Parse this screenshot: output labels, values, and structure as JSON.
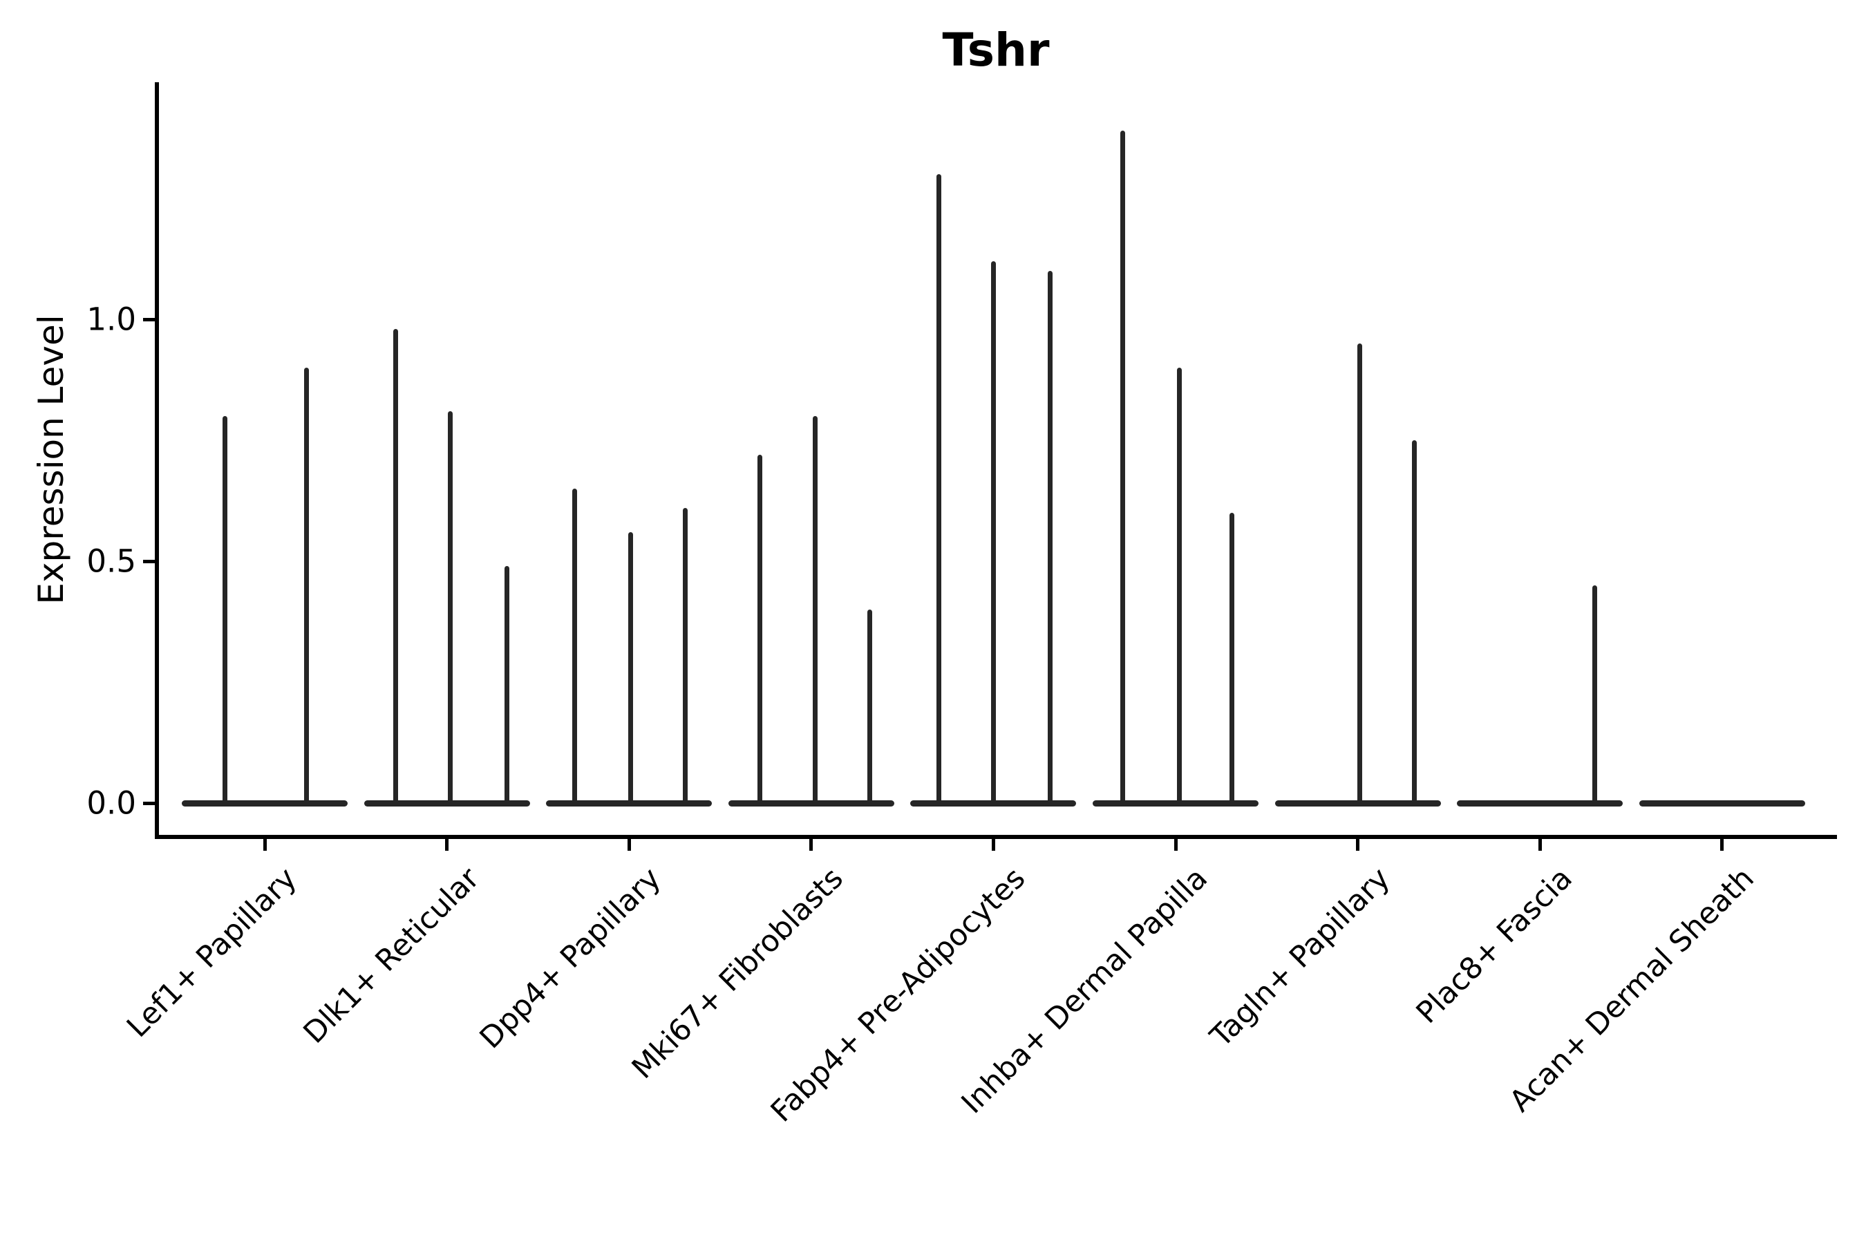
{
  "figure": {
    "title": "Tshr",
    "ylabel": "Expression Level"
  },
  "chart_data": {
    "type": "violin",
    "title": "Tshr",
    "xlabel": "",
    "ylabel": "Expression Level",
    "grid": false,
    "legend": null,
    "background": "#ffffff",
    "violin_color": "#262626",
    "ylim": [
      0,
      1.49
    ],
    "yticks": [
      {
        "value": 0.0,
        "label": "0.0"
      },
      {
        "value": 0.5,
        "label": "0.5"
      },
      {
        "value": 1.0,
        "label": "1.0"
      }
    ],
    "categories": [
      "Lef1+ Papillary",
      "Dlk1+ Reticular",
      "Dpp4+ Papillary",
      "Mki67+ Fibroblasts",
      "Fabp4+ Pre-Adipocytes",
      "Inhba+ Dermal Papilla",
      "Tagln+ Papillary",
      "Plac8+ Fascia",
      "Acan+ Dermal Sheath"
    ],
    "violin_body_width": 0.91,
    "series": [
      {
        "category": "Lef1+ Papillary",
        "spikes": [
          {
            "offset": -0.22,
            "value": 0.8
          },
          {
            "offset": 0.23,
            "value": 0.9
          }
        ]
      },
      {
        "category": "Dlk1+ Reticular",
        "spikes": [
          {
            "offset": -0.28,
            "value": 0.98
          },
          {
            "offset": 0.02,
            "value": 0.81
          },
          {
            "offset": 0.33,
            "value": 0.49
          }
        ]
      },
      {
        "category": "Dpp4+ Papillary",
        "spikes": [
          {
            "offset": -0.3,
            "value": 0.65
          },
          {
            "offset": 0.01,
            "value": 0.56
          },
          {
            "offset": 0.31,
            "value": 0.61
          }
        ]
      },
      {
        "category": "Mki67+ Fibroblasts",
        "spikes": [
          {
            "offset": -0.28,
            "value": 0.72
          },
          {
            "offset": 0.02,
            "value": 0.8
          },
          {
            "offset": 0.32,
            "value": 0.4
          }
        ]
      },
      {
        "category": "Fabp4+ Pre-Adipocytes",
        "spikes": [
          {
            "offset": -0.3,
            "value": 1.3
          },
          {
            "offset": 0.0,
            "value": 1.12
          },
          {
            "offset": 0.31,
            "value": 1.1
          }
        ]
      },
      {
        "category": "Inhba+ Dermal Papilla",
        "spikes": [
          {
            "offset": -0.29,
            "value": 1.39
          },
          {
            "offset": 0.02,
            "value": 0.9
          },
          {
            "offset": 0.31,
            "value": 0.6
          }
        ]
      },
      {
        "category": "Tagln+ Papillary",
        "spikes": [
          {
            "offset": 0.01,
            "value": 0.95
          },
          {
            "offset": 0.31,
            "value": 0.75
          }
        ]
      },
      {
        "category": "Plac8+ Fascia",
        "spikes": [
          {
            "offset": 0.3,
            "value": 0.45
          }
        ]
      },
      {
        "category": "Acan+ Dermal Sheath",
        "spikes": []
      }
    ]
  }
}
